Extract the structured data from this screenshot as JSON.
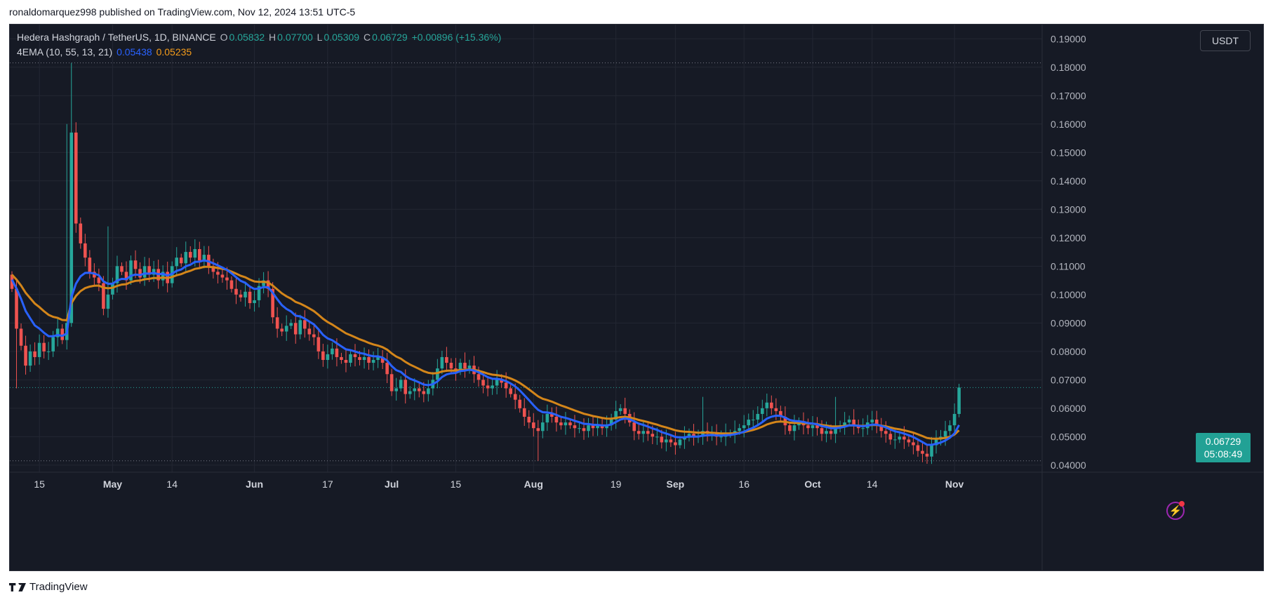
{
  "header": {
    "publish_line": "ronaldomarquez998 published on TradingView.com, Nov 12, 2024 13:51 UTC-5"
  },
  "legend": {
    "symbol": "Hedera Hashgraph / TetherUS, 1D, BINANCE",
    "o_label": "O",
    "o_value": "0.05832",
    "h_label": "H",
    "h_value": "0.07700",
    "l_label": "L",
    "l_value": "0.05309",
    "c_label": "C",
    "c_value": "0.06729",
    "change": "+0.00896 (+15.36%)",
    "indicator": "4EMA (10, 55, 13, 21)",
    "ema_fast_value": "0.05438",
    "ema_slow_value": "0.05235"
  },
  "currency_button": "USDT",
  "price_badge": {
    "price": "0.06729",
    "countdown": "05:08:49"
  },
  "footer": {
    "brand": "TradingView"
  },
  "colors": {
    "background": "#161a25",
    "grid": "#232733",
    "up": "#26a69a",
    "down": "#ef5350",
    "ema_fast": "#2962ff",
    "ema_slow": "#d4861a",
    "text": "#d1d4dc",
    "axis_text": "#b2b5be"
  },
  "chart_data": {
    "type": "candlestick",
    "title": "Hedera Hashgraph / TetherUS, 1D, BINANCE",
    "y_axis": {
      "min": 0.0375,
      "max": 0.195,
      "ticks": [
        "0.04000",
        "0.05000",
        "0.06000",
        "0.07000",
        "0.08000",
        "0.09000",
        "0.10000",
        "0.11000",
        "0.12000",
        "0.13000",
        "0.14000",
        "0.15000",
        "0.16000",
        "0.17000",
        "0.18000",
        "0.19000"
      ]
    },
    "x_axis": {
      "start_date": "2024-04-09",
      "ticks": [
        {
          "label": "15",
          "date": "2024-04-15",
          "bold": false
        },
        {
          "label": "May",
          "date": "2024-05-01",
          "bold": true
        },
        {
          "label": "14",
          "date": "2024-05-14",
          "bold": false
        },
        {
          "label": "Jun",
          "date": "2024-06-01",
          "bold": true
        },
        {
          "label": "17",
          "date": "2024-06-17",
          "bold": false
        },
        {
          "label": "Jul",
          "date": "2024-07-01",
          "bold": true
        },
        {
          "label": "15",
          "date": "2024-07-15",
          "bold": false
        },
        {
          "label": "Aug",
          "date": "2024-08-01",
          "bold": true
        },
        {
          "label": "19",
          "date": "2024-08-19",
          "bold": false
        },
        {
          "label": "Sep",
          "date": "2024-09-01",
          "bold": true
        },
        {
          "label": "16",
          "date": "2024-09-16",
          "bold": false
        },
        {
          "label": "Oct",
          "date": "2024-10-01",
          "bold": true
        },
        {
          "label": "14",
          "date": "2024-10-14",
          "bold": false
        },
        {
          "label": "Nov",
          "date": "2024-11-01",
          "bold": true
        }
      ]
    },
    "reference_lines": [
      {
        "name": "high-marker",
        "value": 0.1815
      },
      {
        "name": "last-price",
        "value": 0.06729
      },
      {
        "name": "low-marker",
        "value": 0.0415
      }
    ],
    "closes": [
      0.102,
      0.088,
      0.082,
      0.075,
      0.08,
      0.078,
      0.083,
      0.08,
      0.08,
      0.085,
      0.088,
      0.084,
      0.09,
      0.157,
      0.125,
      0.118,
      0.113,
      0.108,
      0.106,
      0.104,
      0.095,
      0.1,
      0.104,
      0.11,
      0.108,
      0.105,
      0.112,
      0.109,
      0.106,
      0.11,
      0.107,
      0.109,
      0.105,
      0.108,
      0.104,
      0.11,
      0.113,
      0.111,
      0.115,
      0.113,
      0.116,
      0.112,
      0.114,
      0.11,
      0.108,
      0.107,
      0.106,
      0.105,
      0.102,
      0.1,
      0.099,
      0.101,
      0.097,
      0.098,
      0.103,
      0.105,
      0.102,
      0.092,
      0.088,
      0.087,
      0.089,
      0.09,
      0.086,
      0.091,
      0.088,
      0.086,
      0.085,
      0.08,
      0.077,
      0.079,
      0.081,
      0.078,
      0.077,
      0.076,
      0.079,
      0.078,
      0.077,
      0.078,
      0.076,
      0.077,
      0.078,
      0.076,
      0.072,
      0.066,
      0.067,
      0.07,
      0.065,
      0.066,
      0.067,
      0.066,
      0.065,
      0.067,
      0.07,
      0.074,
      0.078,
      0.076,
      0.074,
      0.073,
      0.076,
      0.074,
      0.075,
      0.072,
      0.07,
      0.068,
      0.067,
      0.068,
      0.07,
      0.069,
      0.067,
      0.065,
      0.063,
      0.06,
      0.057,
      0.055,
      0.053,
      0.052,
      0.055,
      0.058,
      0.057,
      0.055,
      0.054,
      0.055,
      0.054,
      0.053,
      0.053,
      0.052,
      0.054,
      0.053,
      0.054,
      0.053,
      0.054,
      0.056,
      0.059,
      0.06,
      0.058,
      0.055,
      0.052,
      0.051,
      0.052,
      0.051,
      0.05,
      0.05,
      0.048,
      0.049,
      0.048,
      0.047,
      0.049,
      0.05,
      0.051,
      0.05,
      0.05,
      0.052,
      0.051,
      0.051,
      0.05,
      0.05,
      0.051,
      0.051,
      0.052,
      0.053,
      0.054,
      0.056,
      0.056,
      0.058,
      0.06,
      0.062,
      0.06,
      0.059,
      0.057,
      0.054,
      0.052,
      0.054,
      0.055,
      0.054,
      0.053,
      0.054,
      0.053,
      0.051,
      0.052,
      0.051,
      0.053,
      0.054,
      0.055,
      0.056,
      0.054,
      0.053,
      0.053,
      0.055,
      0.056,
      0.054,
      0.052,
      0.051,
      0.049,
      0.049,
      0.05,
      0.049,
      0.048,
      0.047,
      0.045,
      0.044,
      0.043,
      0.047,
      0.049,
      0.05,
      0.052,
      0.054,
      0.058,
      0.06729
    ]
  }
}
